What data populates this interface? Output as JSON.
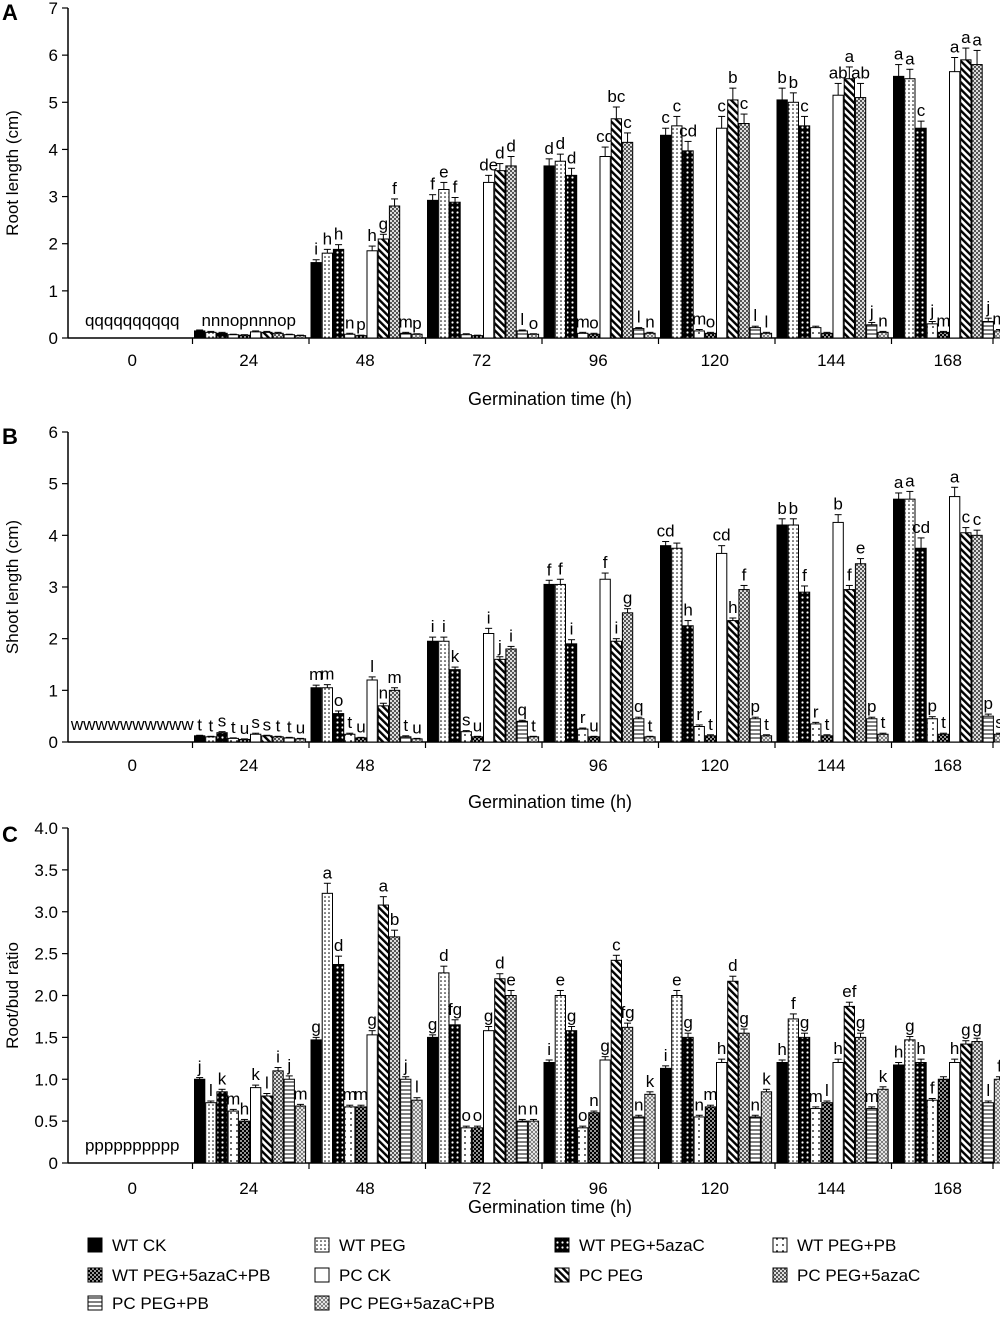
{
  "xlabel": "Germination time (h)",
  "treatments": [
    {
      "name": "WT CK",
      "pattern": "solid"
    },
    {
      "name": "WT PEG",
      "pattern": "dots"
    },
    {
      "name": "WT PEG+5azaC",
      "pattern": "bigdots"
    },
    {
      "name": "WT PEG+PB",
      "pattern": "speck"
    },
    {
      "name": "WT PEG+5azaC+PB",
      "pattern": "polka"
    },
    {
      "name": "PC CK",
      "pattern": "white"
    },
    {
      "name": "PC PEG",
      "pattern": "diag"
    },
    {
      "name": "PC PEG+5azaC",
      "pattern": "checker"
    },
    {
      "name": "PC PEG+PB",
      "pattern": "hlines"
    },
    {
      "name": "PC PEG+5azaC+PB",
      "pattern": "cross"
    }
  ],
  "chart_data": [
    {
      "panel": "A",
      "type": "bar",
      "ylabel": "Root length (cm)",
      "ylim": [
        0,
        7
      ],
      "yticks": [
        "0",
        "1",
        "2",
        "3",
        "4",
        "5",
        "6",
        "7"
      ],
      "categories": [
        "0",
        "24",
        "48",
        "72",
        "96",
        "120",
        "144",
        "168"
      ],
      "series": [
        {
          "values": [
            0,
            0.15,
            1.6,
            2.92,
            3.65,
            4.3,
            5.05,
            5.55
          ],
          "errors": [
            0,
            0.02,
            0.06,
            0.12,
            0.15,
            0.15,
            0.25,
            0.25
          ]
        },
        {
          "values": [
            0,
            0.12,
            1.8,
            3.15,
            3.75,
            4.5,
            5.0,
            5.5
          ],
          "errors": [
            0,
            0.02,
            0.08,
            0.15,
            0.15,
            0.2,
            0.2,
            0.2
          ]
        },
        {
          "values": [
            0,
            0.1,
            1.88,
            2.88,
            3.45,
            3.97,
            4.5,
            4.45
          ],
          "errors": [
            0,
            0.02,
            0.1,
            0.1,
            0.15,
            0.2,
            0.2,
            0.15
          ]
        },
        {
          "values": [
            0,
            0.07,
            0.08,
            0.07,
            0.1,
            0.15,
            0.22,
            0.3
          ],
          "errors": [
            0,
            0.01,
            0.02,
            0.02,
            0.02,
            0.03,
            0.03,
            0.05
          ]
        },
        {
          "values": [
            0,
            0.06,
            0.05,
            0.05,
            0.08,
            0.1,
            0.1,
            0.12
          ],
          "errors": [
            0,
            0.01,
            0.01,
            0.01,
            0.02,
            0.02,
            0.02,
            0.02
          ]
        },
        {
          "values": [
            0,
            0.13,
            1.85,
            3.3,
            3.85,
            4.45,
            5.15,
            5.65
          ],
          "errors": [
            0,
            0.02,
            0.1,
            0.15,
            0.2,
            0.25,
            0.25,
            0.3
          ]
        },
        {
          "values": [
            0,
            0.12,
            2.1,
            3.55,
            4.65,
            5.05,
            5.5,
            5.9
          ],
          "errors": [
            0,
            0.02,
            0.1,
            0.15,
            0.25,
            0.25,
            0.25,
            0.25
          ]
        },
        {
          "values": [
            0,
            0.1,
            2.8,
            3.65,
            4.15,
            4.55,
            5.1,
            5.8
          ],
          "errors": [
            0,
            0.02,
            0.15,
            0.2,
            0.2,
            0.2,
            0.3,
            0.3
          ]
        },
        {
          "values": [
            0,
            0.07,
            0.1,
            0.15,
            0.2,
            0.22,
            0.28,
            0.35
          ],
          "errors": [
            0,
            0.01,
            0.02,
            0.02,
            0.02,
            0.03,
            0.05,
            0.07
          ]
        },
        {
          "values": [
            0,
            0.05,
            0.08,
            0.08,
            0.1,
            0.1,
            0.12,
            0.15
          ],
          "errors": [
            0,
            0.01,
            0.01,
            0.01,
            0.02,
            0.02,
            0.02,
            0.03
          ]
        }
      ],
      "group_letters": [
        "qqqqqqqqqq",
        "nnnopnnnop",
        "",
        "",
        "",
        "",
        "",
        ""
      ],
      "labels": [
        [],
        [],
        [
          "i",
          "h",
          "h",
          "n",
          "p",
          "h",
          "g",
          "f",
          "m",
          "p"
        ],
        [
          "f",
          "e",
          "f",
          "",
          "",
          "de",
          "d",
          "d",
          "l",
          "o"
        ],
        [
          "d",
          "d",
          "d",
          "m",
          "o",
          "cd",
          "bc",
          "c",
          "l",
          "n"
        ],
        [
          "c",
          "c",
          "cd",
          "m",
          "o",
          "c",
          "b",
          "c",
          "l",
          "l"
        ],
        [
          "b",
          "b",
          "c",
          "",
          "",
          "ab",
          "a",
          "ab",
          "j",
          "n"
        ],
        [
          "a",
          "a",
          "c",
          "j",
          "m",
          "a",
          "a",
          "a",
          "j",
          "m"
        ]
      ]
    },
    {
      "panel": "B",
      "type": "bar",
      "ylabel": "Shoot length (cm)",
      "ylim": [
        0,
        6
      ],
      "yticks": [
        "0",
        "1",
        "2",
        "3",
        "4",
        "5",
        "6"
      ],
      "categories": [
        "0",
        "24",
        "48",
        "72",
        "96",
        "120",
        "144",
        "168"
      ],
      "series": [
        {
          "values": [
            0,
            0.12,
            1.05,
            1.95,
            3.05,
            3.8,
            4.2,
            4.7
          ],
          "errors": [
            0,
            0.01,
            0.05,
            0.08,
            0.08,
            0.08,
            0.12,
            0.12
          ]
        },
        {
          "values": [
            0,
            0.1,
            1.05,
            1.95,
            3.05,
            3.75,
            4.2,
            4.7
          ],
          "errors": [
            0,
            0.01,
            0.06,
            0.08,
            0.1,
            0.1,
            0.12,
            0.15
          ]
        },
        {
          "values": [
            0,
            0.18,
            0.55,
            1.4,
            1.9,
            2.25,
            2.9,
            3.75
          ],
          "errors": [
            0,
            0.02,
            0.05,
            0.05,
            0.08,
            0.1,
            0.12,
            0.2
          ]
        },
        {
          "values": [
            0,
            0.07,
            0.15,
            0.2,
            0.25,
            0.3,
            0.35,
            0.45
          ],
          "errors": [
            0,
            0.01,
            0.02,
            0.02,
            0.02,
            0.03,
            0.03,
            0.04
          ]
        },
        {
          "values": [
            0,
            0.05,
            0.08,
            0.1,
            0.1,
            0.12,
            0.12,
            0.15
          ],
          "errors": [
            0,
            0.01,
            0.01,
            0.01,
            0.01,
            0.02,
            0.02,
            0.02
          ]
        },
        {
          "values": [
            0,
            0.15,
            1.2,
            2.1,
            3.15,
            3.65,
            4.25,
            4.75
          ],
          "errors": [
            0,
            0.02,
            0.06,
            0.1,
            0.12,
            0.15,
            0.15,
            0.18
          ]
        },
        {
          "values": [
            0,
            0.12,
            0.7,
            1.6,
            1.95,
            2.35,
            2.95,
            4.05
          ],
          "errors": [
            0,
            0.01,
            0.05,
            0.05,
            0.05,
            0.05,
            0.08,
            0.1
          ]
        },
        {
          "values": [
            0,
            0.1,
            1.0,
            1.8,
            2.5,
            2.95,
            3.45,
            4.0
          ],
          "errors": [
            0,
            0.01,
            0.05,
            0.05,
            0.08,
            0.08,
            0.1,
            0.1
          ]
        },
        {
          "values": [
            0,
            0.08,
            0.1,
            0.4,
            0.45,
            0.45,
            0.45,
            0.5
          ],
          "errors": [
            0,
            0.01,
            0.02,
            0.02,
            0.03,
            0.03,
            0.03,
            0.04
          ]
        },
        {
          "values": [
            0,
            0.06,
            0.06,
            0.1,
            0.1,
            0.12,
            0.15,
            0.15
          ],
          "errors": [
            0,
            0.01,
            0.01,
            0.01,
            0.01,
            0.02,
            0.02,
            0.02
          ]
        }
      ],
      "group_letters": [
        "wwwwwwwwww",
        "",
        "",
        "",
        "",
        "",
        "",
        ""
      ],
      "labels": [
        [],
        [
          "t",
          "t",
          "s",
          "t",
          "u",
          "s",
          "s",
          "t",
          "t",
          "u"
        ],
        [
          "m",
          "m",
          "o",
          "t",
          "u",
          "l",
          "n",
          "m",
          "t",
          "u"
        ],
        [
          "i",
          "i",
          "k",
          "s",
          "u",
          "i",
          "j",
          "i",
          "q",
          "t"
        ],
        [
          "f",
          "f",
          "i",
          "r",
          "u",
          "f",
          "i",
          "g",
          "q",
          "t"
        ],
        [
          "cd",
          "",
          "h",
          "r",
          "t",
          "cd",
          "h",
          "f",
          "p",
          "t"
        ],
        [
          "b",
          "b",
          "f",
          "r",
          "t",
          "b",
          "f",
          "e",
          "p",
          "t"
        ],
        [
          "a",
          "a",
          "cd",
          "p",
          "t",
          "a",
          "c",
          "c",
          "p",
          "s"
        ]
      ]
    },
    {
      "panel": "C",
      "type": "bar",
      "ylabel": "Root/bud ratio",
      "ylim": [
        0,
        4.0
      ],
      "yticks": [
        "0",
        "0.5",
        "1.0",
        "1.5",
        "2.0",
        "2.5",
        "3.0",
        "3.5",
        "4.0"
      ],
      "categories": [
        "0",
        "24",
        "48",
        "72",
        "96",
        "120",
        "144",
        "168"
      ],
      "series": [
        {
          "values": [
            0,
            1.0,
            1.47,
            1.5,
            1.2,
            1.13,
            1.2,
            1.17
          ],
          "errors": [
            0,
            0.02,
            0.03,
            0.03,
            0.03,
            0.03,
            0.03,
            0.03
          ]
        },
        {
          "values": [
            0,
            0.72,
            3.22,
            2.27,
            2.0,
            2.0,
            1.72,
            1.47
          ],
          "errors": [
            0,
            0.02,
            0.12,
            0.08,
            0.06,
            0.06,
            0.06,
            0.04
          ]
        },
        {
          "values": [
            0,
            0.85,
            2.37,
            1.65,
            1.58,
            1.5,
            1.5,
            1.2
          ],
          "errors": [
            0,
            0.03,
            0.1,
            0.06,
            0.05,
            0.05,
            0.05,
            0.04
          ]
        },
        {
          "values": [
            0,
            0.62,
            0.67,
            0.42,
            0.42,
            0.55,
            0.65,
            0.75
          ],
          "errors": [
            0,
            0.02,
            0.02,
            0.02,
            0.02,
            0.02,
            0.02,
            0.02
          ]
        },
        {
          "values": [
            0,
            0.5,
            0.67,
            0.42,
            0.6,
            0.67,
            0.72,
            1.0
          ],
          "errors": [
            0,
            0.02,
            0.02,
            0.02,
            0.02,
            0.02,
            0.02,
            0.03
          ]
        },
        {
          "values": [
            0,
            0.9,
            1.53,
            1.58,
            1.23,
            1.2,
            1.2,
            1.2
          ],
          "errors": [
            0,
            0.03,
            0.05,
            0.05,
            0.04,
            0.04,
            0.04,
            0.04
          ]
        },
        {
          "values": [
            0,
            0.8,
            3.08,
            2.2,
            2.42,
            2.17,
            1.87,
            1.42
          ],
          "errors": [
            0,
            0.03,
            0.1,
            0.06,
            0.06,
            0.06,
            0.05,
            0.04
          ]
        },
        {
          "values": [
            0,
            1.1,
            2.7,
            2.0,
            1.62,
            1.55,
            1.5,
            1.45
          ],
          "errors": [
            0,
            0.04,
            0.08,
            0.06,
            0.05,
            0.05,
            0.05,
            0.04
          ]
        },
        {
          "values": [
            0,
            1.0,
            1.0,
            0.5,
            0.55,
            0.55,
            0.65,
            0.72
          ],
          "errors": [
            0,
            0.04,
            0.03,
            0.02,
            0.02,
            0.02,
            0.02,
            0.02
          ]
        },
        {
          "values": [
            0,
            0.68,
            0.75,
            0.5,
            0.82,
            0.85,
            0.88,
            1.0
          ],
          "errors": [
            0,
            0.02,
            0.03,
            0.02,
            0.03,
            0.03,
            0.03,
            0.03
          ]
        }
      ],
      "group_letters": [
        "pppppppppp",
        "",
        "",
        "",
        "",
        "",
        "",
        ""
      ],
      "labels": [
        [],
        [
          "j",
          "l",
          "k",
          "m",
          "h",
          "k",
          "l",
          "i",
          "j",
          "m"
        ],
        [
          "g",
          "a",
          "d",
          "m",
          "m",
          "g",
          "a",
          "b",
          "j",
          "l"
        ],
        [
          "g",
          "d",
          "fg",
          "o",
          "o",
          "g",
          "d",
          "e",
          "n",
          "n"
        ],
        [
          "i",
          "e",
          "g",
          "o",
          "n",
          "g",
          "c",
          "fg",
          "n",
          "k"
        ],
        [
          "i",
          "e",
          "g",
          "n",
          "m",
          "h",
          "d",
          "g",
          "n",
          "k"
        ],
        [
          "h",
          "f",
          "g",
          "m",
          "l",
          "h",
          "ef",
          "g",
          "m",
          "k"
        ],
        [
          "h",
          "g",
          "h",
          "f",
          "",
          "h",
          "g",
          "g",
          "l",
          "f"
        ]
      ]
    }
  ]
}
